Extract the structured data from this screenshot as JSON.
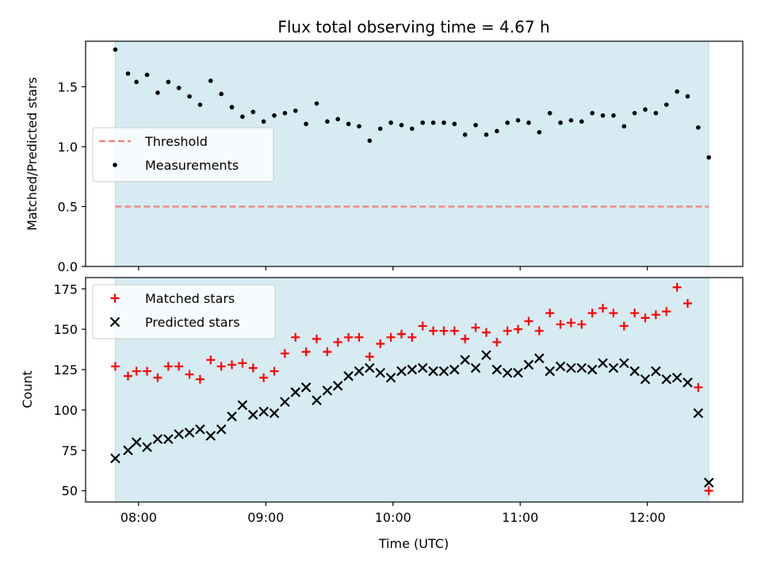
{
  "chart_data": [
    {
      "type": "scatter",
      "title": "Flux total observing time = 4.67 h",
      "xlabel": "",
      "ylabel": "Matched/Predicted stars",
      "xlim": [
        "07:35",
        "12:45"
      ],
      "ylim": [
        0.0,
        1.88
      ],
      "yticks": [
        0.0,
        0.5,
        1.0,
        1.5
      ],
      "ytick_labels": [
        "0.0",
        "0.5",
        "1.0",
        "1.5"
      ],
      "xticks": [
        "08:00",
        "09:00",
        "10:00",
        "11:00",
        "12:00"
      ],
      "show_xtick_labels": false,
      "grid": false,
      "legend_position": "center-left",
      "colors": {
        "shade": "#add8e6",
        "threshold": "#f08080",
        "measurements": "#000000"
      },
      "shaded_span": [
        "07:49",
        "12:29"
      ],
      "threshold": {
        "name": "Threshold",
        "value": 0.5,
        "style": "dashed"
      },
      "series": [
        {
          "name": "Measurements",
          "marker": "dot",
          "x": [
            "07:49",
            "07:55",
            "07:59",
            "08:04",
            "08:09",
            "08:14",
            "08:19",
            "08:24",
            "08:29",
            "08:34",
            "08:39",
            "08:44",
            "08:49",
            "08:54",
            "08:59",
            "09:04",
            "09:09",
            "09:14",
            "09:19",
            "09:24",
            "09:29",
            "09:34",
            "09:39",
            "09:44",
            "09:49",
            "09:54",
            "09:59",
            "10:04",
            "10:09",
            "10:14",
            "10:19",
            "10:24",
            "10:29",
            "10:34",
            "10:39",
            "10:44",
            "10:49",
            "10:54",
            "10:59",
            "11:04",
            "11:09",
            "11:14",
            "11:19",
            "11:24",
            "11:29",
            "11:34",
            "11:39",
            "11:44",
            "11:49",
            "11:54",
            "11:59",
            "12:04",
            "12:09",
            "12:14",
            "12:19",
            "12:24",
            "12:29"
          ],
          "y": [
            1.81,
            1.61,
            1.54,
            1.6,
            1.45,
            1.54,
            1.49,
            1.42,
            1.35,
            1.55,
            1.44,
            1.33,
            1.25,
            1.29,
            1.21,
            1.26,
            1.28,
            1.3,
            1.19,
            1.36,
            1.21,
            1.23,
            1.19,
            1.17,
            1.05,
            1.15,
            1.2,
            1.18,
            1.15,
            1.2,
            1.2,
            1.2,
            1.19,
            1.1,
            1.18,
            1.1,
            1.13,
            1.2,
            1.22,
            1.2,
            1.12,
            1.28,
            1.2,
            1.22,
            1.21,
            1.28,
            1.26,
            1.26,
            1.17,
            1.28,
            1.31,
            1.28,
            1.35,
            1.46,
            1.42,
            1.16,
            0.91
          ]
        }
      ]
    },
    {
      "type": "scatter",
      "title": "",
      "xlabel": "Time (UTC)",
      "ylabel": "Count",
      "xlim": [
        "07:35",
        "12:45"
      ],
      "ylim": [
        43,
        182
      ],
      "yticks": [
        50,
        75,
        100,
        125,
        150,
        175
      ],
      "ytick_labels": [
        "50",
        "75",
        "100",
        "125",
        "150",
        "175"
      ],
      "xticks": [
        "08:00",
        "09:00",
        "10:00",
        "11:00",
        "12:00"
      ],
      "show_xtick_labels": true,
      "grid": false,
      "legend_position": "top-left",
      "colors": {
        "shade": "#add8e6",
        "matched": "#ff0000",
        "predicted": "#000000"
      },
      "shaded_span": [
        "07:49",
        "12:29"
      ],
      "series": [
        {
          "name": "Matched stars",
          "marker": "plus",
          "x": [
            "07:49",
            "07:55",
            "07:59",
            "08:04",
            "08:09",
            "08:14",
            "08:19",
            "08:24",
            "08:29",
            "08:34",
            "08:39",
            "08:44",
            "08:49",
            "08:54",
            "08:59",
            "09:04",
            "09:09",
            "09:14",
            "09:19",
            "09:24",
            "09:29",
            "09:34",
            "09:39",
            "09:44",
            "09:49",
            "09:54",
            "09:59",
            "10:04",
            "10:09",
            "10:14",
            "10:19",
            "10:24",
            "10:29",
            "10:34",
            "10:39",
            "10:44",
            "10:49",
            "10:54",
            "10:59",
            "11:04",
            "11:09",
            "11:14",
            "11:19",
            "11:24",
            "11:29",
            "11:34",
            "11:39",
            "11:44",
            "11:49",
            "11:54",
            "11:59",
            "12:04",
            "12:09",
            "12:14",
            "12:19",
            "12:24",
            "12:29"
          ],
          "y": [
            127,
            121,
            124,
            124,
            120,
            127,
            127,
            122,
            119,
            131,
            127,
            128,
            129,
            126,
            120,
            124,
            135,
            145,
            136,
            144,
            136,
            142,
            145,
            145,
            133,
            141,
            145,
            147,
            145,
            152,
            149,
            149,
            149,
            144,
            151,
            148,
            142,
            149,
            150,
            155,
            149,
            160,
            153,
            154,
            153,
            160,
            163,
            160,
            152,
            160,
            157,
            159,
            161,
            176,
            166,
            114,
            50
          ]
        },
        {
          "name": "Predicted stars",
          "marker": "x",
          "x": [
            "07:49",
            "07:55",
            "07:59",
            "08:04",
            "08:09",
            "08:14",
            "08:19",
            "08:24",
            "08:29",
            "08:34",
            "08:39",
            "08:44",
            "08:49",
            "08:54",
            "08:59",
            "09:04",
            "09:09",
            "09:14",
            "09:19",
            "09:24",
            "09:29",
            "09:34",
            "09:39",
            "09:44",
            "09:49",
            "09:54",
            "09:59",
            "10:04",
            "10:09",
            "10:14",
            "10:19",
            "10:24",
            "10:29",
            "10:34",
            "10:39",
            "10:44",
            "10:49",
            "10:54",
            "10:59",
            "11:04",
            "11:09",
            "11:14",
            "11:19",
            "11:24",
            "11:29",
            "11:34",
            "11:39",
            "11:44",
            "11:49",
            "11:54",
            "11:59",
            "12:04",
            "12:09",
            "12:14",
            "12:19",
            "12:24",
            "12:29"
          ],
          "y": [
            70,
            75,
            80,
            77,
            82,
            82,
            85,
            86,
            88,
            84,
            88,
            96,
            103,
            97,
            99,
            98,
            105,
            111,
            114,
            106,
            112,
            115,
            121,
            124,
            126,
            123,
            120,
            124,
            125,
            126,
            124,
            124,
            125,
            131,
            126,
            134,
            125,
            123,
            123,
            128,
            132,
            124,
            127,
            126,
            126,
            125,
            129,
            126,
            129,
            124,
            119,
            124,
            119,
            120,
            117,
            98,
            55
          ]
        }
      ]
    }
  ]
}
